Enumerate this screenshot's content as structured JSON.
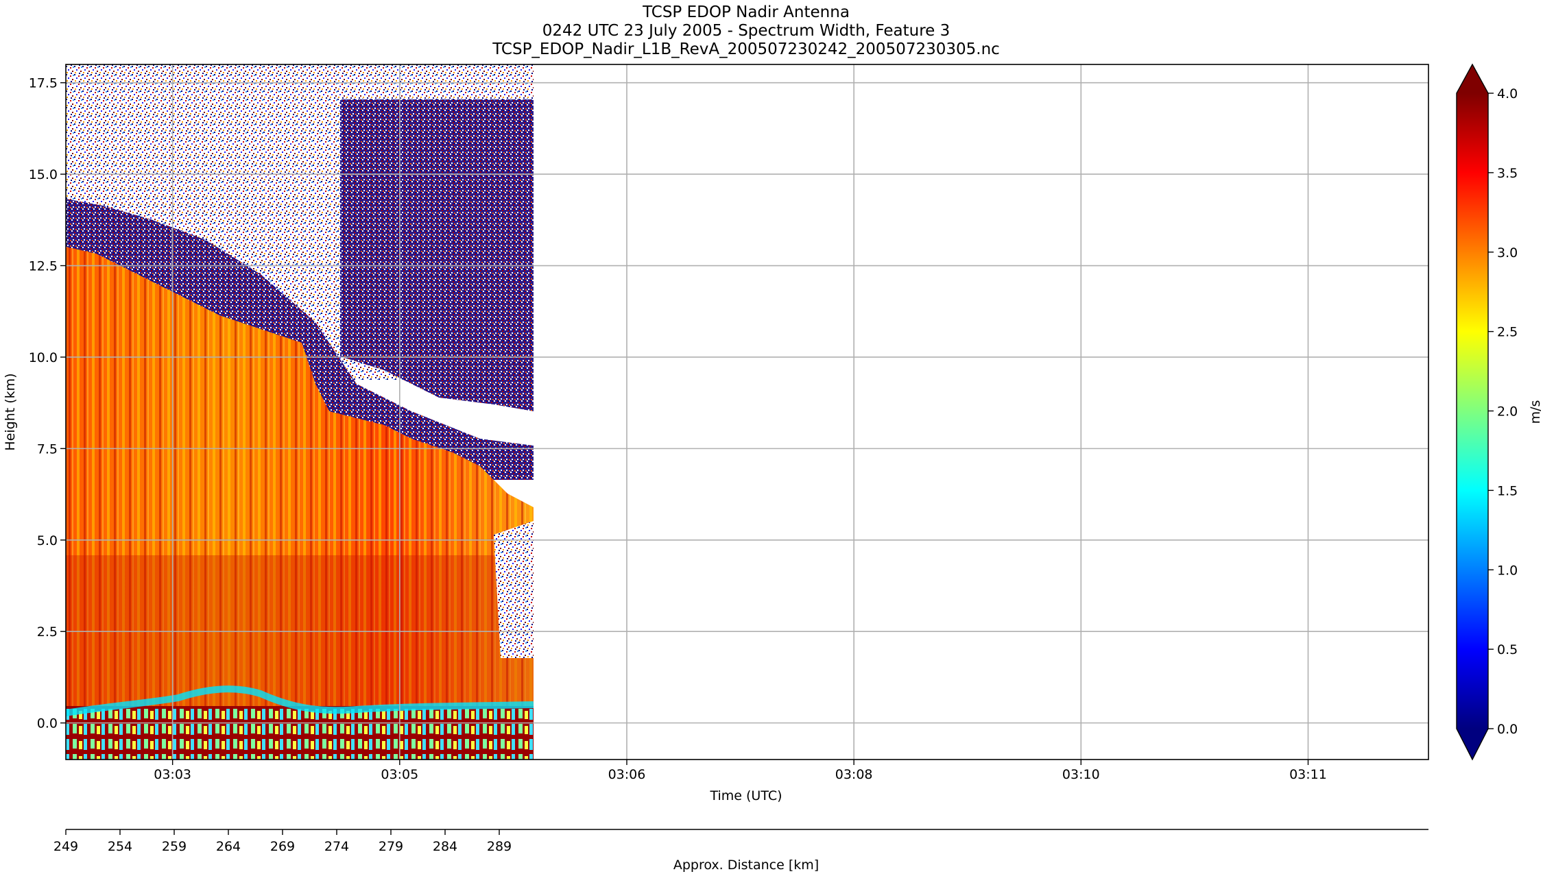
{
  "chart_data": {
    "type": "heatmap",
    "title": [
      "TCSP EDOP Nadir Antenna",
      "0242 UTC 23 July 2005 - Spectrum Width, Feature 3",
      "TCSP_EDOP_Nadir_L1B_RevA_200507230242_200507230305.nc"
    ],
    "xlabel": "Time (UTC)",
    "ylabel": "Height (km)",
    "x_tick_labels": [
      "03:03",
      "03:05",
      "03:06",
      "03:08",
      "03:10",
      "03:11"
    ],
    "y_ticks": [
      0.0,
      2.5,
      5.0,
      7.5,
      10.0,
      12.5,
      15.0,
      17.5
    ],
    "y_tick_labels": [
      "0.0",
      "2.5",
      "5.0",
      "7.5",
      "10.0",
      "12.5",
      "15.0",
      "17.5"
    ],
    "ylim": [
      -1.0,
      18.0
    ],
    "grid": true,
    "secondary_axis": {
      "label": "Approx. Distance [km]",
      "ticks": [
        "249",
        "254",
        "259",
        "264",
        "269",
        "274",
        "279",
        "284",
        "289"
      ]
    },
    "colorbar": {
      "label": "m/s",
      "colormap": "jet",
      "range": [
        0.0,
        4.0
      ],
      "ticks": [
        "0.0",
        "0.5",
        "1.0",
        "1.5",
        "2.0",
        "2.5",
        "3.0",
        "3.5",
        "4.0"
      ],
      "extend": "both",
      "colors": [
        "#00007f",
        "#0000ff",
        "#007fff",
        "#00ffff",
        "#7fff7f",
        "#ffff00",
        "#ff7f00",
        "#ff0000",
        "#7f0000"
      ]
    },
    "data_extent": {
      "coverage": "first ~34% of time axis",
      "regions": [
        {
          "name": "surface / near-surface",
          "height_km": [
            -1.0,
            0.8
          ],
          "width_ms": "0.5–4.0 mixed (cyan, green, dark red)"
        },
        {
          "name": "convective core",
          "height_km": [
            0.8,
            12.8
          ],
          "width_ms": "3.0–3.8 (orange-red)"
        },
        {
          "name": "noise above echo top",
          "height_km": [
            9.0,
            18.0
          ],
          "width_ms": "0.0–4.0 random speckle"
        }
      ]
    }
  }
}
